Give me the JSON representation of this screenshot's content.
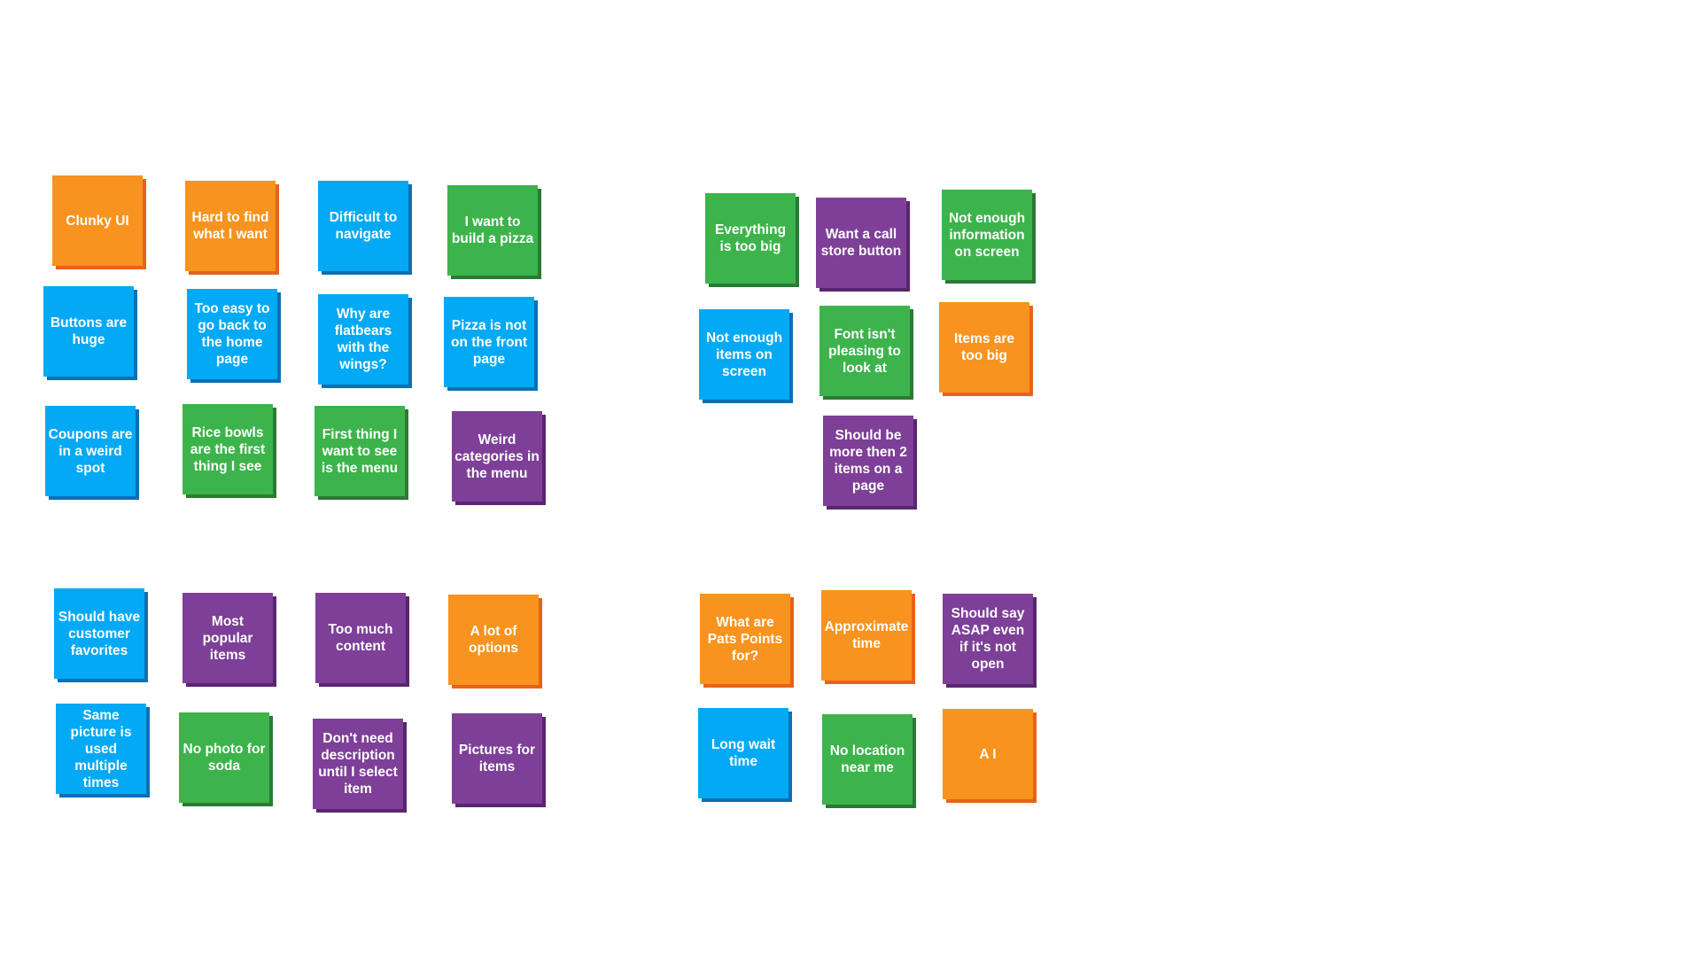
{
  "colors": {
    "orange": {
      "fill": "#F7931E",
      "shadow": "#E8621A"
    },
    "blue": {
      "fill": "#03A9F4",
      "shadow": "#0D6FB5"
    },
    "green": {
      "fill": "#3CB44B",
      "shadow": "#2A7A34"
    },
    "purple": {
      "fill": "#7E3F98",
      "shadow": "#5A2570"
    }
  },
  "notes": [
    {
      "text": "Clunky UI",
      "color": "orange"
    },
    {
      "text": "Hard to find what I want",
      "color": "orange"
    },
    {
      "text": "Difficult to navigate",
      "color": "blue"
    },
    {
      "text": "I want to build a pizza",
      "color": "green"
    },
    {
      "text": "Buttons are huge",
      "color": "blue"
    },
    {
      "text": "Too easy to go back to the home page",
      "color": "blue"
    },
    {
      "text": "Why are flatbears with the wings?",
      "color": "blue"
    },
    {
      "text": "Pizza is not on the front page",
      "color": "blue"
    },
    {
      "text": "Coupons are in a weird spot",
      "color": "blue"
    },
    {
      "text": "Rice bowls are the first thing I see",
      "color": "green"
    },
    {
      "text": "First thing I want to see is the menu",
      "color": "green"
    },
    {
      "text": "Weird categories in the menu",
      "color": "purple"
    },
    {
      "text": "Everything is too big",
      "color": "green"
    },
    {
      "text": "Want a call store button",
      "color": "purple"
    },
    {
      "text": "Not enough information on screen",
      "color": "green"
    },
    {
      "text": "Not enough items on screen",
      "color": "blue"
    },
    {
      "text": "Font isn't pleasing to look at",
      "color": "green"
    },
    {
      "text": "Items are too big",
      "color": "orange"
    },
    {
      "text": "Should be more then 2 items on a page",
      "color": "purple"
    },
    {
      "text": "Should have customer favorites",
      "color": "blue"
    },
    {
      "text": "Most popular items",
      "color": "purple"
    },
    {
      "text": "Too much content",
      "color": "purple"
    },
    {
      "text": "A lot of options",
      "color": "orange"
    },
    {
      "text": "Same picture is used multiple times",
      "color": "blue"
    },
    {
      "text": "No photo for soda",
      "color": "green"
    },
    {
      "text": "Don't need description until I select item",
      "color": "purple"
    },
    {
      "text": "Pictures for items",
      "color": "purple"
    },
    {
      "text": "What are Pats Points for?",
      "color": "orange"
    },
    {
      "text": "Approximate time",
      "color": "orange"
    },
    {
      "text": "Should say ASAP even if it's not open",
      "color": "purple"
    },
    {
      "text": "Long wait time",
      "color": "blue"
    },
    {
      "text": "No location near me",
      "color": "green"
    },
    {
      "text": "A I",
      "color": "orange"
    }
  ]
}
